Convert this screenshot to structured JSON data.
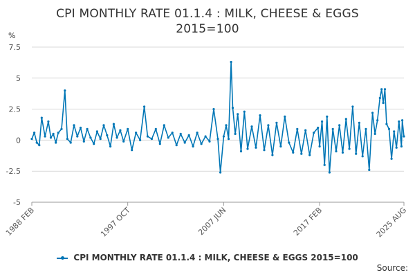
{
  "chart_data": {
    "type": "line",
    "title_line1": "CPI MONTHLY RATE 01.1.4 : MILK, CHEESE & EGGS",
    "title_line2": "2015=100",
    "unit": "%",
    "ylabel": "%",
    "ylim": [
      -5,
      7.5
    ],
    "yticks": [
      "7.5",
      "5",
      "2.5",
      "0",
      "-2.5",
      "-5"
    ],
    "xlim": [
      "1988 FEB",
      "2025 AUG"
    ],
    "xticks": [
      "1988 FEB",
      "1997 OCT",
      "2007 JUN",
      "2017 FEB",
      "2025 AUG"
    ],
    "grid": true,
    "legend_position": "bottom",
    "series": [
      {
        "name": "CPI MONTHLY RATE 01.1.4 : MILK, CHEESE & EGGS 2015=100",
        "color": "#0076b6",
        "points": [
          [
            "1988-02",
            0.1
          ],
          [
            "1988-05",
            0.6
          ],
          [
            "1988-08",
            -0.2
          ],
          [
            "1988-11",
            -0.4
          ],
          [
            "1989-02",
            1.8
          ],
          [
            "1989-06",
            0.3
          ],
          [
            "1989-10",
            1.5
          ],
          [
            "1990-01",
            0.2
          ],
          [
            "1990-04",
            0.5
          ],
          [
            "1990-07",
            -0.2
          ],
          [
            "1990-10",
            0.6
          ],
          [
            "1991-02",
            0.9
          ],
          [
            "1991-06",
            4.0
          ],
          [
            "1991-09",
            0.1
          ],
          [
            "1992-01",
            -0.2
          ],
          [
            "1992-05",
            1.2
          ],
          [
            "1992-09",
            0.3
          ],
          [
            "1993-01",
            1.0
          ],
          [
            "1993-05",
            -0.1
          ],
          [
            "1993-09",
            0.9
          ],
          [
            "1994-01",
            0.2
          ],
          [
            "1994-05",
            -0.3
          ],
          [
            "1994-09",
            0.7
          ],
          [
            "1995-01",
            0.1
          ],
          [
            "1995-05",
            1.2
          ],
          [
            "1995-09",
            0.4
          ],
          [
            "1996-01",
            -0.5
          ],
          [
            "1996-05",
            1.3
          ],
          [
            "1996-09",
            0.2
          ],
          [
            "1997-01",
            0.8
          ],
          [
            "1997-05",
            -0.1
          ],
          [
            "1997-10",
            0.9
          ],
          [
            "1998-03",
            -0.8
          ],
          [
            "1998-08",
            0.6
          ],
          [
            "1999-01",
            0.0
          ],
          [
            "1999-06",
            2.7
          ],
          [
            "1999-10",
            0.3
          ],
          [
            "2000-03",
            0.1
          ],
          [
            "2000-08",
            0.9
          ],
          [
            "2001-01",
            -0.3
          ],
          [
            "2001-06",
            1.2
          ],
          [
            "2001-11",
            0.2
          ],
          [
            "2002-04",
            0.6
          ],
          [
            "2002-09",
            -0.4
          ],
          [
            "2003-02",
            0.5
          ],
          [
            "2003-07",
            -0.2
          ],
          [
            "2003-12",
            0.4
          ],
          [
            "2004-05",
            -0.5
          ],
          [
            "2004-10",
            0.6
          ],
          [
            "2005-03",
            -0.3
          ],
          [
            "2005-08",
            0.3
          ],
          [
            "2006-01",
            -0.1
          ],
          [
            "2006-06",
            2.5
          ],
          [
            "2006-11",
            0.1
          ],
          [
            "2007-02",
            -2.6
          ],
          [
            "2007-06",
            0.3
          ],
          [
            "2007-09",
            1.2
          ],
          [
            "2007-12",
            0.1
          ],
          [
            "2008-03",
            6.3
          ],
          [
            "2008-05",
            2.6
          ],
          [
            "2008-08",
            0.5
          ],
          [
            "2008-11",
            2.1
          ],
          [
            "2009-03",
            -0.9
          ],
          [
            "2009-07",
            2.3
          ],
          [
            "2009-11",
            -0.7
          ],
          [
            "2010-04",
            1.1
          ],
          [
            "2010-09",
            -0.6
          ],
          [
            "2011-02",
            2.0
          ],
          [
            "2011-07",
            -0.8
          ],
          [
            "2011-12",
            1.2
          ],
          [
            "2012-05",
            -1.2
          ],
          [
            "2012-10",
            1.4
          ],
          [
            "2013-03",
            -0.5
          ],
          [
            "2013-08",
            1.9
          ],
          [
            "2014-01",
            -0.2
          ],
          [
            "2014-06",
            -1.0
          ],
          [
            "2014-11",
            0.9
          ],
          [
            "2015-04",
            -1.1
          ],
          [
            "2015-09",
            0.8
          ],
          [
            "2016-02",
            -1.2
          ],
          [
            "2016-07",
            0.6
          ],
          [
            "2016-12",
            1.0
          ],
          [
            "2017-02",
            -0.5
          ],
          [
            "2017-05",
            1.5
          ],
          [
            "2017-08",
            -2.0
          ],
          [
            "2017-11",
            1.9
          ],
          [
            "2018-02",
            -2.6
          ],
          [
            "2018-06",
            0.9
          ],
          [
            "2018-10",
            -0.9
          ],
          [
            "2019-02",
            1.2
          ],
          [
            "2019-06",
            -1.0
          ],
          [
            "2019-10",
            1.7
          ],
          [
            "2020-02",
            -0.7
          ],
          [
            "2020-06",
            2.7
          ],
          [
            "2020-10",
            -1.1
          ],
          [
            "2021-02",
            1.4
          ],
          [
            "2021-06",
            -1.3
          ],
          [
            "2021-10",
            0.9
          ],
          [
            "2022-02",
            -2.4
          ],
          [
            "2022-06",
            2.2
          ],
          [
            "2022-09",
            0.5
          ],
          [
            "2022-12",
            1.6
          ],
          [
            "2023-03",
            3.4
          ],
          [
            "2023-05",
            4.1
          ],
          [
            "2023-07",
            3.0
          ],
          [
            "2023-09",
            4.1
          ],
          [
            "2023-11",
            1.3
          ],
          [
            "2024-02",
            0.9
          ],
          [
            "2024-05",
            -1.5
          ],
          [
            "2024-08",
            0.7
          ],
          [
            "2024-11",
            -0.6
          ],
          [
            "2025-02",
            1.5
          ],
          [
            "2025-05",
            -0.5
          ],
          [
            "2025-06",
            1.6
          ],
          [
            "2025-08",
            0.3
          ]
        ]
      }
    ]
  },
  "source_label": "Source:"
}
